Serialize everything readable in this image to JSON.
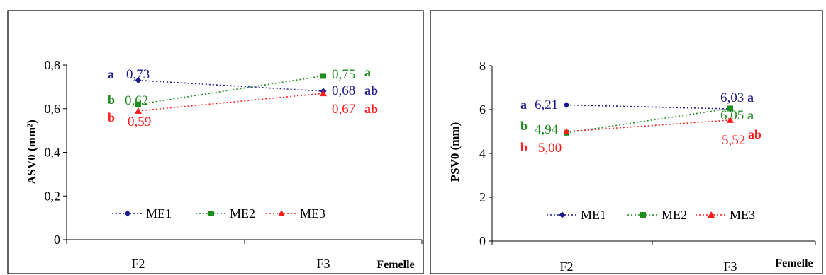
{
  "colors": {
    "ME1": "#1a1a8c",
    "ME2": "#1e8c1e",
    "ME3": "#ff1a1a",
    "axis": "#000000",
    "frame": "#000000"
  },
  "chart_data": [
    {
      "type": "line",
      "categories": [
        "F2",
        "F3"
      ],
      "xlabel": "Femelle",
      "ylabel": "ASV0 (mm²)",
      "ylim": [
        0,
        0.8
      ],
      "yticks": [
        "0",
        "0,2",
        "0,4",
        "0,6",
        "0,8"
      ],
      "legend": "bottom",
      "series": [
        {
          "name": "ME1",
          "values": [
            0.73,
            0.68
          ],
          "value_labels": [
            "0,73",
            "0,68"
          ],
          "letters": [
            "a",
            "ab"
          ]
        },
        {
          "name": "ME2",
          "values": [
            0.62,
            0.75
          ],
          "value_labels": [
            "0,62",
            "0,75"
          ],
          "letters": [
            "b",
            "a"
          ]
        },
        {
          "name": "ME3",
          "values": [
            0.59,
            0.67
          ],
          "value_labels": [
            "0,59",
            "0,67"
          ],
          "letters": [
            "b",
            "ab"
          ]
        }
      ]
    },
    {
      "type": "line",
      "categories": [
        "F2",
        "F3"
      ],
      "xlabel": "Femelle",
      "ylabel": "PSV0 (mm)",
      "ylim": [
        0,
        8
      ],
      "yticks": [
        "0",
        "2",
        "4",
        "6",
        "8"
      ],
      "legend": "bottom",
      "series": [
        {
          "name": "ME1",
          "values": [
            6.21,
            6.03
          ],
          "value_labels": [
            "6,21",
            "6,03"
          ],
          "letters": [
            "a",
            "a"
          ]
        },
        {
          "name": "ME2",
          "values": [
            4.94,
            6.05
          ],
          "value_labels": [
            "4,94",
            "6,05"
          ],
          "letters": [
            "b",
            "a"
          ]
        },
        {
          "name": "ME3",
          "values": [
            5.0,
            5.52
          ],
          "value_labels": [
            "5,00",
            "5,52"
          ],
          "letters": [
            "b",
            "ab"
          ]
        }
      ]
    }
  ]
}
